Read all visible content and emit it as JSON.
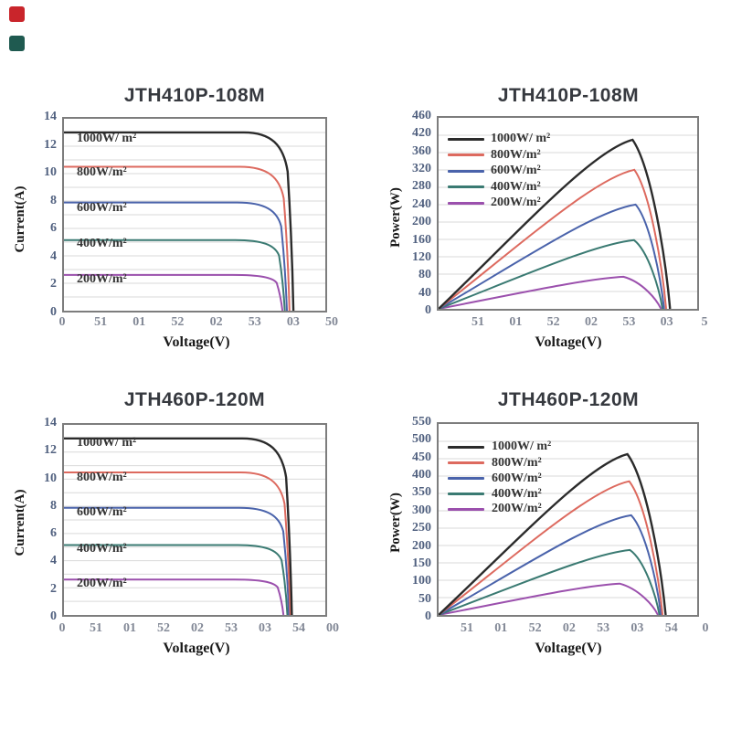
{
  "page": {
    "background": "#ffffff"
  },
  "markers": {
    "red_square_color": "#c9252b",
    "teal_square_color": "#1f5a50"
  },
  "palette": {
    "grid": "#d9d9d9",
    "frame": "#7d7d7d",
    "title_text": "#36393f",
    "ytick_text": "#50607f",
    "xtick_text": "#828896"
  },
  "chart_data": [
    {
      "type": "line",
      "title": "JTH410P-108M",
      "xlabel": "Voltage(V)",
      "ylabel": "Current(A)",
      "x_tick_labels": [
        "0",
        "51",
        "01",
        "52",
        "02",
        "53",
        "03",
        "50"
      ],
      "y_tick_labels": [
        "14",
        "12",
        "10",
        "8",
        "6",
        "4",
        "2",
        "0"
      ],
      "ylim": [
        0,
        14
      ],
      "grid": "horizontal",
      "grid_divisions": 14,
      "legend_position": "inline-labels-left",
      "series": [
        {
          "name": "1000W/ m²",
          "color": "#2b2b2b",
          "isc_A": 13.0,
          "plateau_frac": 0.929,
          "voc_x_frac": 0.878
        },
        {
          "name": "800W/m²",
          "color": "#dd6a5f",
          "isc_A": 10.5,
          "plateau_frac": 0.75,
          "voc_x_frac": 0.863
        },
        {
          "name": "600W/m²",
          "color": "#4a63ab",
          "isc_A": 7.9,
          "plateau_frac": 0.564,
          "voc_x_frac": 0.853
        },
        {
          "name": "400W/m²",
          "color": "#3a7a72",
          "isc_A": 5.2,
          "plateau_frac": 0.368,
          "voc_x_frac": 0.845
        },
        {
          "name": "200W/m²",
          "color": "#9b50ad",
          "isc_A": 2.6,
          "plateau_frac": 0.186,
          "voc_x_frac": 0.836
        }
      ]
    },
    {
      "type": "line",
      "title": "JTH410P-108M",
      "xlabel": "Voltage(V)",
      "ylabel": "Power(W)",
      "x_tick_labels": [
        "51",
        "01",
        "52",
        "02",
        "53",
        "03",
        "5"
      ],
      "y_tick_labels": [
        "460",
        "420",
        "360",
        "320",
        "280",
        "240",
        "200",
        "160",
        "120",
        "80",
        "40",
        "0"
      ],
      "ylim": [
        0,
        460
      ],
      "grid": "horizontal",
      "grid_divisions": 11,
      "legend_position": "upper-left",
      "series": [
        {
          "name": "1000W/ m²",
          "color": "#2b2b2b",
          "pmax_W": 410,
          "peak_x_frac": 0.75,
          "peak_y_frac": 0.885,
          "voc_x_frac": 0.895
        },
        {
          "name": "800W/m²",
          "color": "#dd6a5f",
          "pmax_W": 320,
          "peak_x_frac": 0.757,
          "peak_y_frac": 0.728,
          "voc_x_frac": 0.88
        },
        {
          "name": "600W/m²",
          "color": "#4a63ab",
          "pmax_W": 240,
          "peak_x_frac": 0.762,
          "peak_y_frac": 0.546,
          "voc_x_frac": 0.872
        },
        {
          "name": "400W/m²",
          "color": "#3a7a72",
          "pmax_W": 158,
          "peak_x_frac": 0.756,
          "peak_y_frac": 0.36,
          "voc_x_frac": 0.866
        },
        {
          "name": "200W/m²",
          "color": "#9b50ad",
          "pmax_W": 76,
          "peak_x_frac": 0.715,
          "peak_y_frac": 0.168,
          "voc_x_frac": 0.86
        }
      ]
    },
    {
      "type": "line",
      "title": "JTH460P-120M",
      "xlabel": "Voltage(V)",
      "ylabel": "Current(A)",
      "x_tick_labels": [
        "0",
        "51",
        "01",
        "52",
        "02",
        "53",
        "03",
        "54",
        "00"
      ],
      "y_tick_labels": [
        "14",
        "12",
        "10",
        "8",
        "6",
        "4",
        "2",
        "0"
      ],
      "ylim": [
        0,
        14
      ],
      "grid": "horizontal",
      "grid_divisions": 14,
      "legend_position": "inline-labels-left",
      "series": [
        {
          "name": "1000W/ m²",
          "color": "#2b2b2b",
          "isc_A": 13.0,
          "plateau_frac": 0.929,
          "voc_x_frac": 0.872
        },
        {
          "name": "800W/m²",
          "color": "#dd6a5f",
          "isc_A": 10.5,
          "plateau_frac": 0.75,
          "voc_x_frac": 0.866
        },
        {
          "name": "600W/m²",
          "color": "#4a63ab",
          "isc_A": 7.9,
          "plateau_frac": 0.564,
          "voc_x_frac": 0.861
        },
        {
          "name": "400W/m²",
          "color": "#3a7a72",
          "isc_A": 5.2,
          "plateau_frac": 0.368,
          "voc_x_frac": 0.855
        },
        {
          "name": "200W/m²",
          "color": "#9b50ad",
          "isc_A": 2.6,
          "plateau_frac": 0.186,
          "voc_x_frac": 0.84
        }
      ]
    },
    {
      "type": "line",
      "title": "JTH460P-120M",
      "xlabel": "Voltage(V)",
      "ylabel": "Power(W)",
      "x_tick_labels": [
        "51",
        "01",
        "52",
        "02",
        "53",
        "03",
        "54",
        "0"
      ],
      "y_tick_labels": [
        "550",
        "500",
        "450",
        "400",
        "350",
        "300",
        "250",
        "200",
        "150",
        "100",
        "50",
        "0"
      ],
      "ylim": [
        0,
        550
      ],
      "grid": "horizontal",
      "grid_divisions": 11,
      "legend_position": "upper-left",
      "series": [
        {
          "name": "1000W/ m²",
          "color": "#2b2b2b",
          "pmax_W": 463,
          "peak_x_frac": 0.73,
          "peak_y_frac": 0.842,
          "voc_x_frac": 0.878
        },
        {
          "name": "800W/m²",
          "color": "#dd6a5f",
          "pmax_W": 385,
          "peak_x_frac": 0.737,
          "peak_y_frac": 0.7,
          "voc_x_frac": 0.866
        },
        {
          "name": "600W/m²",
          "color": "#4a63ab",
          "pmax_W": 287,
          "peak_x_frac": 0.745,
          "peak_y_frac": 0.522,
          "voc_x_frac": 0.86
        },
        {
          "name": "400W/m²",
          "color": "#3a7a72",
          "pmax_W": 187,
          "peak_x_frac": 0.74,
          "peak_y_frac": 0.34,
          "voc_x_frac": 0.854
        },
        {
          "name": "200W/m²",
          "color": "#9b50ad",
          "pmax_W": 90,
          "peak_x_frac": 0.7,
          "peak_y_frac": 0.164,
          "voc_x_frac": 0.848
        }
      ]
    }
  ]
}
